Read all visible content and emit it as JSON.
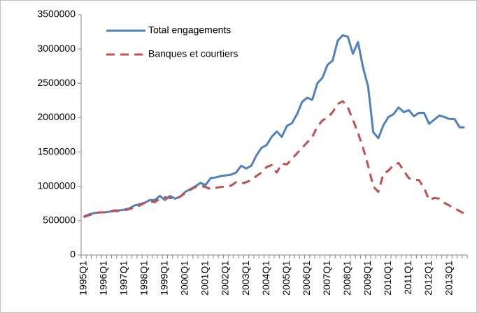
{
  "chart_data": {
    "type": "line",
    "categories": [
      "1995Q1",
      null,
      null,
      null,
      "1996Q1",
      null,
      null,
      null,
      "1997Q1",
      null,
      null,
      null,
      "1998Q1",
      null,
      null,
      null,
      "1999Q1",
      null,
      null,
      null,
      "2000Q1",
      null,
      null,
      null,
      "2001Q1",
      null,
      null,
      null,
      "2002Q1",
      null,
      null,
      null,
      "2003Q1",
      null,
      null,
      null,
      "2004Q1",
      null,
      null,
      null,
      "2005Q1",
      null,
      null,
      null,
      "2006Q1",
      null,
      null,
      null,
      "2007Q1",
      null,
      null,
      null,
      "2008Q1",
      null,
      null,
      null,
      "2009Q1",
      null,
      null,
      null,
      "2010Q1",
      null,
      null,
      null,
      "2011Q1",
      null,
      null,
      null,
      "2012Q1",
      null,
      null,
      null,
      "2013Q1",
      null,
      null,
      null
    ],
    "series": [
      {
        "name": "Total engagements",
        "color": "#4f81bd",
        "dashed": false,
        "values": [
          560000,
          590000,
          610000,
          620000,
          620000,
          630000,
          650000,
          650000,
          660000,
          680000,
          720000,
          740000,
          760000,
          800000,
          800000,
          860000,
          800000,
          860000,
          820000,
          850000,
          920000,
          960000,
          1000000,
          1050000,
          1020000,
          1120000,
          1130000,
          1150000,
          1160000,
          1170000,
          1200000,
          1300000,
          1260000,
          1300000,
          1450000,
          1560000,
          1600000,
          1720000,
          1800000,
          1720000,
          1880000,
          1920000,
          2050000,
          2230000,
          2290000,
          2260000,
          2500000,
          2580000,
          2770000,
          2830000,
          3120000,
          3200000,
          3180000,
          2930000,
          3100000,
          2730000,
          2450000,
          1790000,
          1700000,
          1890000,
          2010000,
          2050000,
          2150000,
          2080000,
          2110000,
          2020000,
          2070000,
          2070000,
          1910000,
          1970000,
          2030000,
          2010000,
          1980000,
          1980000,
          1860000,
          1860000
        ]
      },
      {
        "name": "Banques et courtiers",
        "color": "#c0504d",
        "dashed": true,
        "values": [
          550000,
          580000,
          600000,
          620000,
          620000,
          630000,
          640000,
          640000,
          650000,
          670000,
          690000,
          720000,
          760000,
          780000,
          770000,
          820000,
          840000,
          830000,
          820000,
          850000,
          900000,
          950000,
          990000,
          1010000,
          990000,
          960000,
          980000,
          990000,
          1000000,
          1010000,
          1060000,
          1040000,
          1060000,
          1090000,
          1150000,
          1200000,
          1280000,
          1310000,
          1200000,
          1330000,
          1320000,
          1400000,
          1480000,
          1560000,
          1640000,
          1720000,
          1870000,
          1960000,
          2000000,
          2080000,
          2200000,
          2240000,
          2150000,
          1970000,
          1780000,
          1560000,
          1300000,
          1000000,
          920000,
          1180000,
          1230000,
          1310000,
          1340000,
          1230000,
          1120000,
          1100000,
          1090000,
          980000,
          800000,
          830000,
          820000,
          760000,
          720000,
          680000,
          640000,
          600000
        ]
      }
    ],
    "ylim": [
      0,
      3500000
    ],
    "yticks": [
      0,
      500000,
      1000000,
      1500000,
      2000000,
      2500000,
      3000000,
      3500000
    ],
    "grid": false
  }
}
